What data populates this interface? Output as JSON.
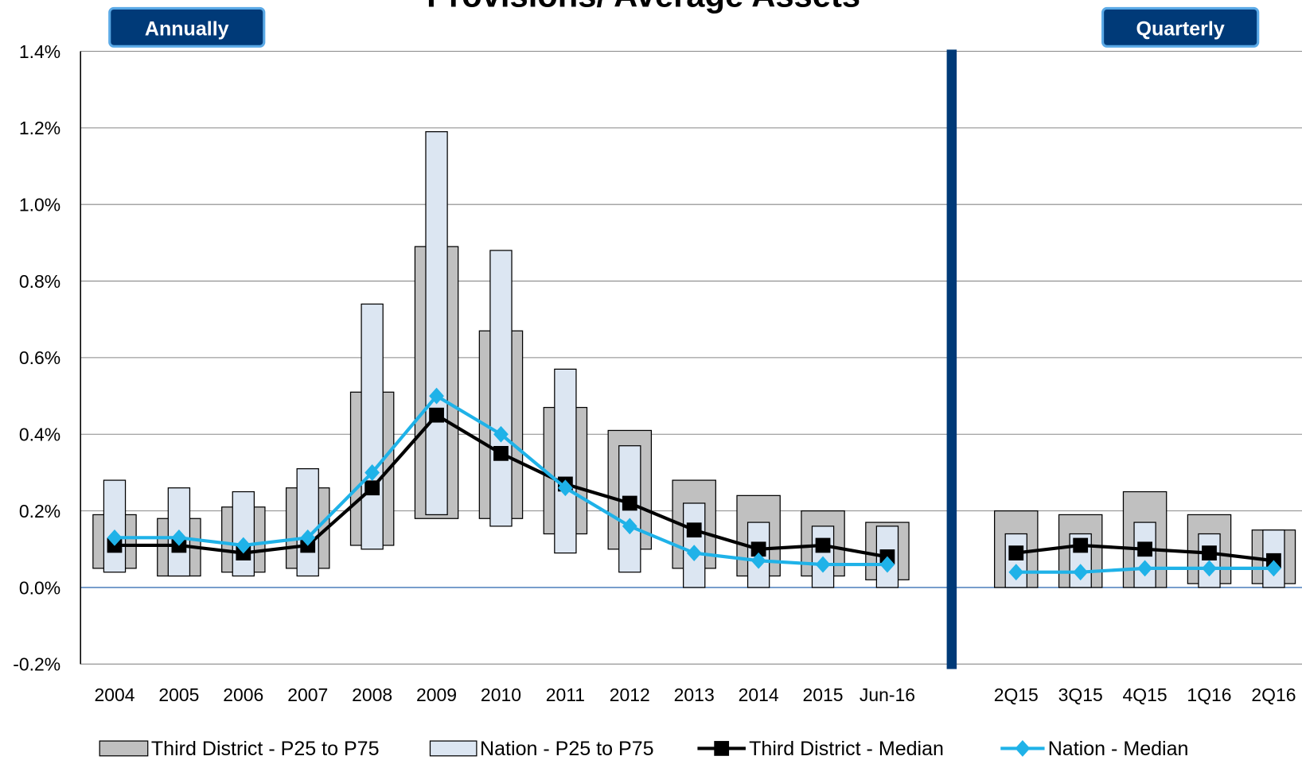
{
  "chart_data": {
    "type": "range-line",
    "title": "Provisions/ Average Assets",
    "annotations": [
      {
        "text": "Annually"
      },
      {
        "text": "Quarterly"
      }
    ],
    "categories": [
      "2004",
      "2005",
      "2006",
      "2007",
      "2008",
      "2009",
      "2010",
      "2011",
      "2012",
      "2013",
      "2014",
      "2015",
      "Jun-16",
      null,
      "2Q15",
      "3Q15",
      "4Q15",
      "1Q16",
      "2Q16"
    ],
    "ylim": [
      -0.2,
      1.4
    ],
    "yticks": [
      {
        "value": -0.2,
        "label": "-0.2%"
      },
      {
        "value": 0,
        "label": "0.0%"
      },
      {
        "value": 0.2,
        "label": "0.2%"
      },
      {
        "value": 0.4,
        "label": "0.4%"
      },
      {
        "value": 0.6,
        "label": "0.6%"
      },
      {
        "value": 0.8,
        "label": "0.8%"
      },
      {
        "value": 1.0,
        "label": "1.0%"
      },
      {
        "value": 1.2,
        "label": "1.2%"
      },
      {
        "value": 1.4,
        "label": "1.4%"
      }
    ],
    "grid": true,
    "legend": "bottom",
    "series": [
      {
        "name": "Third District - P25 to P75",
        "type": "range",
        "color": "#c0c0c0",
        "low": [
          0.05,
          0.03,
          0.04,
          0.05,
          0.11,
          0.18,
          0.18,
          0.14,
          0.1,
          0.05,
          0.03,
          0.03,
          0.02,
          null,
          0.0,
          0.0,
          0.0,
          0.01,
          0.01
        ],
        "high": [
          0.19,
          0.18,
          0.21,
          0.26,
          0.51,
          0.89,
          0.67,
          0.47,
          0.41,
          0.28,
          0.24,
          0.2,
          0.17,
          null,
          0.2,
          0.19,
          0.25,
          0.19,
          0.15
        ]
      },
      {
        "name": "Nation - P25 to P75",
        "type": "range",
        "color": "#dce6f2",
        "low": [
          0.04,
          0.03,
          0.03,
          0.03,
          0.1,
          0.19,
          0.16,
          0.09,
          0.04,
          0.0,
          0.0,
          0.0,
          0.0,
          null,
          0.0,
          0.0,
          0.0,
          0.0,
          0.0
        ],
        "high": [
          0.28,
          0.26,
          0.25,
          0.31,
          0.74,
          1.19,
          0.88,
          0.57,
          0.37,
          0.22,
          0.17,
          0.16,
          0.16,
          null,
          0.14,
          0.14,
          0.17,
          0.14,
          0.15
        ]
      },
      {
        "name": "Third District - Median",
        "type": "line",
        "marker": "square",
        "color": "#000000",
        "values": [
          0.11,
          0.11,
          0.09,
          0.11,
          0.26,
          0.45,
          0.35,
          0.27,
          0.22,
          0.15,
          0.1,
          0.11,
          0.08,
          null,
          0.09,
          0.11,
          0.1,
          0.09,
          0.07
        ]
      },
      {
        "name": "Nation - Median",
        "type": "line",
        "marker": "diamond",
        "color": "#1fb2e8",
        "values": [
          0.13,
          0.13,
          0.11,
          0.13,
          0.3,
          0.5,
          0.4,
          0.26,
          0.16,
          0.09,
          0.07,
          0.06,
          0.06,
          null,
          0.04,
          0.04,
          0.05,
          0.05,
          0.05
        ]
      }
    ]
  }
}
